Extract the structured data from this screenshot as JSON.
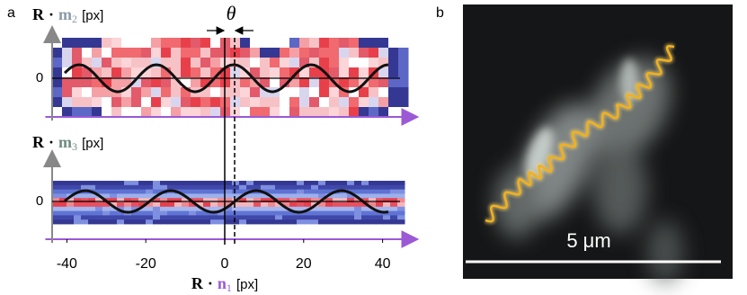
{
  "panel_a": {
    "label": "a",
    "theta": "θ",
    "top_ylabel": {
      "vector": "R",
      "dot": "·",
      "component": "m",
      "index": "2",
      "unit": "[px]"
    },
    "bottom_ylabel": {
      "vector": "R",
      "dot": "·",
      "component": "m",
      "index": "3",
      "unit": "[px]"
    },
    "xlabel": {
      "vector": "R",
      "dot": "·",
      "component": "n",
      "index": "1",
      "unit": "[px]"
    },
    "xlim": [
      -45,
      47
    ],
    "xticks": [
      -40,
      -20,
      0,
      20,
      40
    ],
    "top_plot": {
      "ylim": [
        -10,
        10
      ],
      "yticks": [
        0
      ]
    },
    "bottom_plot": {
      "ylim": [
        -10,
        10
      ],
      "yticks": [
        0
      ]
    }
  },
  "panel_b": {
    "label": "b",
    "scale_bar": "5 μm"
  }
}
